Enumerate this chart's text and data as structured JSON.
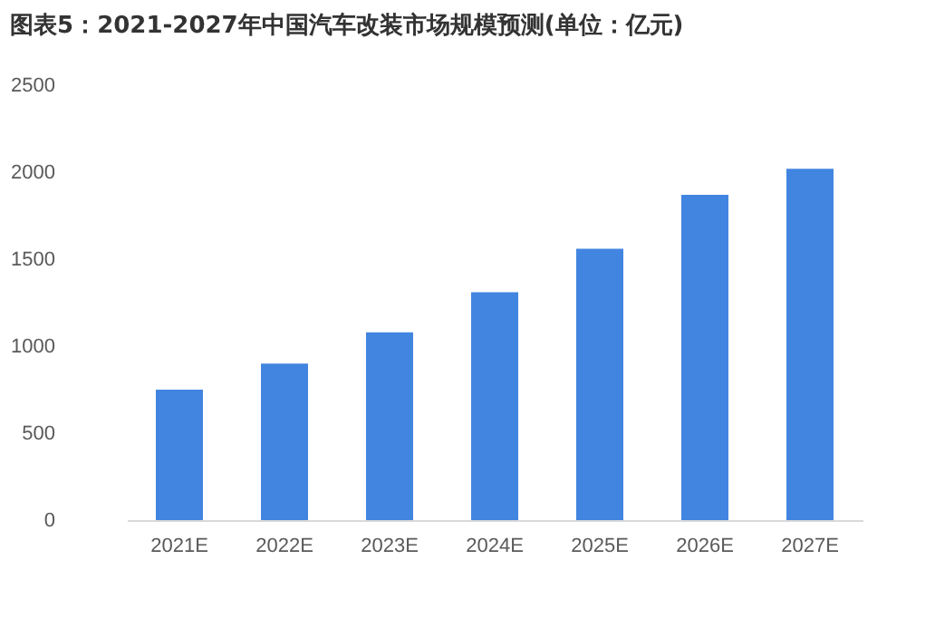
{
  "chart_data": {
    "type": "bar",
    "title": "图表5：2021-2027年中国汽车改装市场规模预测(单位：亿元)",
    "categories": [
      "2021E",
      "2022E",
      "2023E",
      "2024E",
      "2025E",
      "2026E",
      "2027E"
    ],
    "values": [
      750,
      900,
      1080,
      1310,
      1560,
      1870,
      2020
    ],
    "color": "#4285e0",
    "ylim": [
      0,
      2500
    ],
    "yticks": [
      0,
      500,
      1000,
      1500,
      2000,
      2500
    ],
    "grid": false
  }
}
